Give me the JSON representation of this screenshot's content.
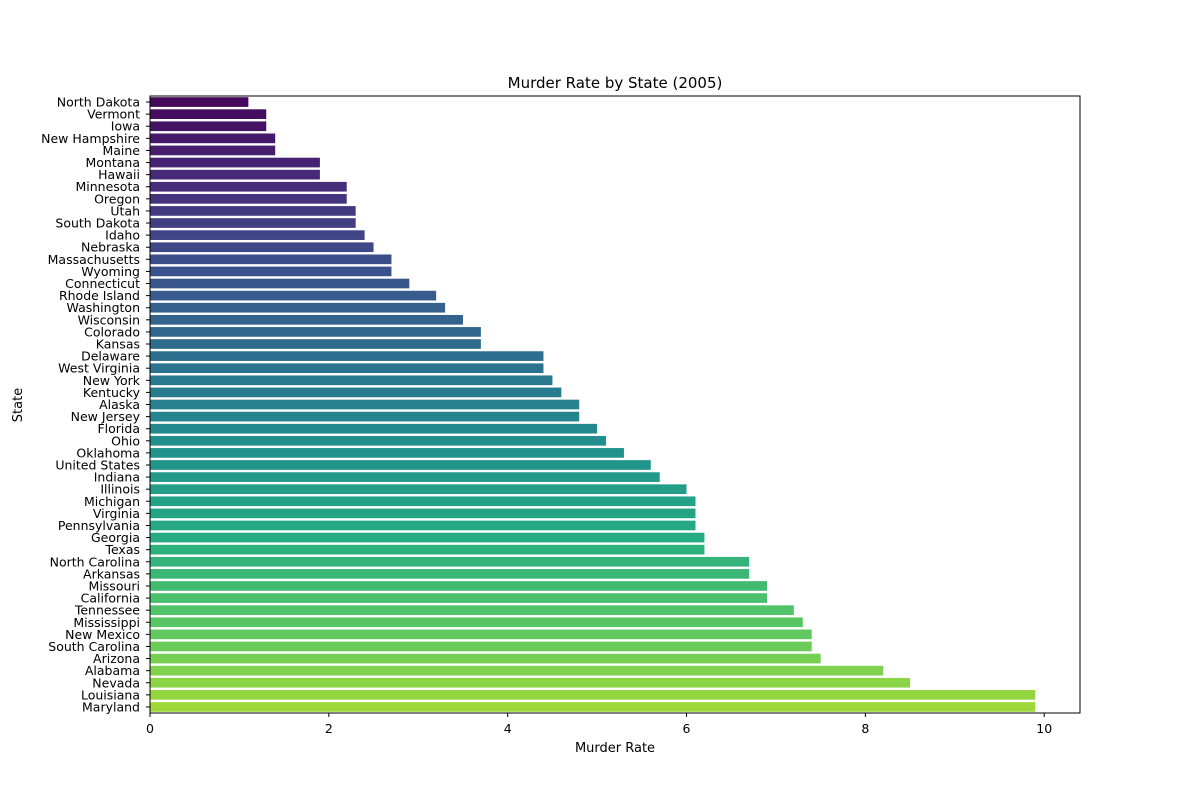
{
  "chart_data": {
    "type": "bar",
    "orientation": "horizontal",
    "title": "Murder Rate by State (2005)",
    "xlabel": "Murder Rate",
    "ylabel": "State",
    "xlim": [
      0,
      10.4
    ],
    "xticks": [
      "0",
      "2",
      "4",
      "6",
      "8",
      "10"
    ],
    "grid": false,
    "legend": "none",
    "palette": "viridis",
    "categories": [
      "North Dakota",
      "Vermont",
      "Iowa",
      "New Hampshire",
      "Maine",
      "Montana",
      "Hawaii",
      "Minnesota",
      "Oregon",
      "Utah",
      "South Dakota",
      "Idaho",
      "Nebraska",
      "Massachusetts",
      "Wyoming",
      "Connecticut",
      "Rhode Island",
      "Washington",
      "Wisconsin",
      "Colorado",
      "Kansas",
      "Delaware",
      "West Virginia",
      "New York",
      "Kentucky",
      "Alaska",
      "New Jersey",
      "Florida",
      "Ohio",
      "Oklahoma",
      "United States",
      "Indiana",
      "Illinois",
      "Michigan",
      "Virginia",
      "Pennsylvania",
      "Georgia",
      "Texas",
      "North Carolina",
      "Arkansas",
      "Missouri",
      "California",
      "Tennessee",
      "Mississippi",
      "New Mexico",
      "South Carolina",
      "Arizona",
      "Alabama",
      "Nevada",
      "Louisiana",
      "Maryland"
    ],
    "values": [
      1.1,
      1.3,
      1.3,
      1.4,
      1.4,
      1.9,
      1.9,
      2.2,
      2.2,
      2.3,
      2.3,
      2.4,
      2.5,
      2.7,
      2.7,
      2.9,
      3.2,
      3.3,
      3.5,
      3.7,
      3.7,
      4.4,
      4.4,
      4.5,
      4.6,
      4.8,
      4.8,
      5.0,
      5.1,
      5.3,
      5.6,
      5.7,
      6.0,
      6.1,
      6.1,
      6.1,
      6.2,
      6.2,
      6.7,
      6.7,
      6.9,
      6.9,
      7.2,
      7.3,
      7.4,
      7.4,
      7.5,
      8.2,
      8.5,
      9.9,
      9.9
    ]
  }
}
